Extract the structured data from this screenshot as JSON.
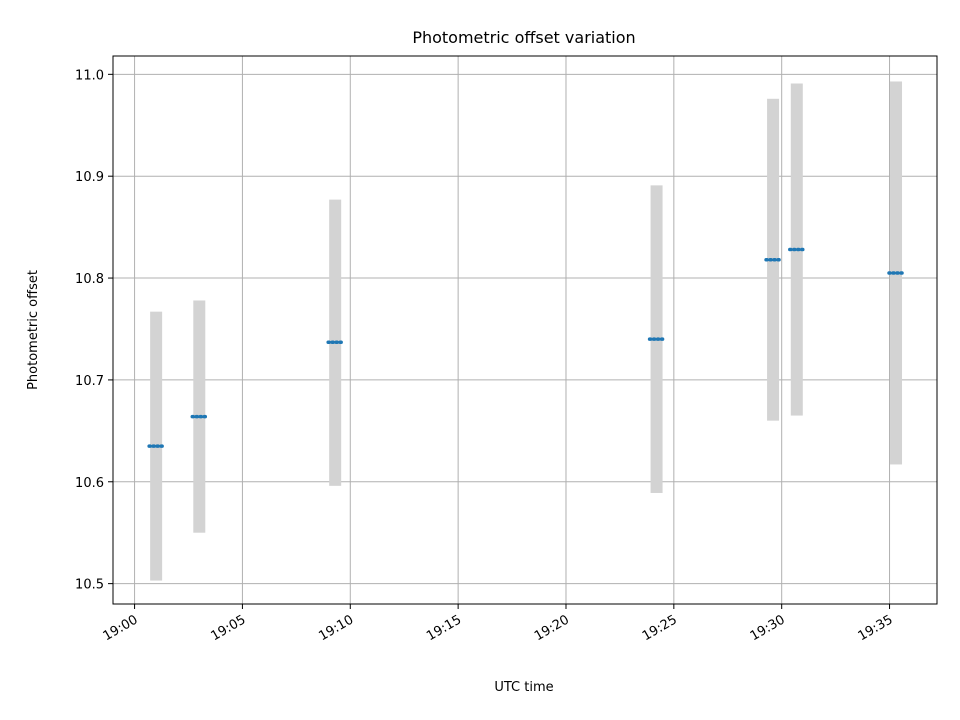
{
  "chart_data": {
    "type": "scatter",
    "title": "Photometric offset variation",
    "xlabel": "UTC time",
    "ylabel": "Photometric offset",
    "x_ticks": [
      "19:00",
      "19:05",
      "19:10",
      "19:15",
      "19:20",
      "19:25",
      "19:30",
      "19:35"
    ],
    "x_tick_minutes": [
      0,
      5,
      10,
      15,
      20,
      25,
      30,
      35
    ],
    "xlim_minutes": [
      -1.0,
      37.2
    ],
    "y_ticks": [
      10.5,
      10.6,
      10.7,
      10.8,
      10.9,
      11.0
    ],
    "ylim": [
      10.48,
      11.018
    ],
    "grid": true,
    "colors": {
      "point": "#1f77b4",
      "errorbar": "#d3d3d3"
    },
    "series": [
      {
        "points": [
          {
            "time": "19:01",
            "minute": 1.0,
            "value": 10.635,
            "low": 10.503,
            "high": 10.767
          },
          {
            "time": "19:03",
            "minute": 3.0,
            "value": 10.664,
            "low": 10.55,
            "high": 10.778
          },
          {
            "time": "19:09",
            "minute": 9.3,
            "value": 10.737,
            "low": 10.596,
            "high": 10.877
          },
          {
            "time": "19:24",
            "minute": 24.2,
            "value": 10.74,
            "low": 10.589,
            "high": 10.891
          },
          {
            "time": "19:29",
            "minute": 29.6,
            "value": 10.818,
            "low": 10.66,
            "high": 10.976
          },
          {
            "time": "19:30",
            "minute": 30.7,
            "value": 10.828,
            "low": 10.665,
            "high": 10.991
          },
          {
            "time": "19:35",
            "minute": 35.3,
            "value": 10.805,
            "low": 10.617,
            "high": 10.993
          }
        ]
      }
    ]
  }
}
